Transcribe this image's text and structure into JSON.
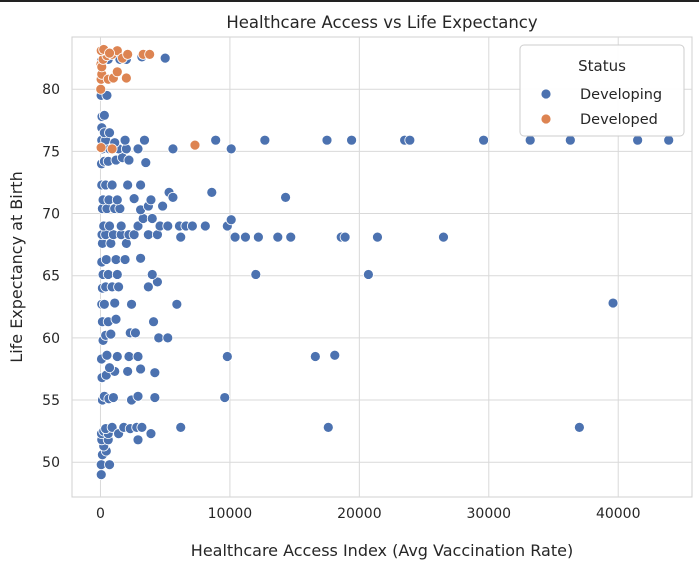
{
  "chart_data": {
    "type": "scatter",
    "title": "Healthcare Access vs Life Expectancy",
    "xlabel": "Healthcare Access Index (Avg Vaccination Rate)",
    "ylabel": "Life Expectancy at Birth",
    "xlim": [
      -2200,
      45700
    ],
    "ylim": [
      47.2,
      84.2
    ],
    "xticks": [
      0,
      10000,
      20000,
      30000,
      40000
    ],
    "yticks": [
      50,
      55,
      60,
      65,
      70,
      75,
      80
    ],
    "grid": true,
    "legend": {
      "title": "Status",
      "placement": "top-right",
      "entries": [
        {
          "label": "Developing",
          "color": "#4c72b0"
        },
        {
          "label": "Developed",
          "color": "#dd8452"
        }
      ]
    },
    "series": [
      {
        "name": "Developing",
        "color": "#4c72b0",
        "points": [
          [
            60,
            49.0
          ],
          [
            60,
            49.8
          ],
          [
            700,
            49.8
          ],
          [
            150,
            50.6
          ],
          [
            450,
            50.9
          ],
          [
            250,
            51.3
          ],
          [
            100,
            51.8
          ],
          [
            600,
            51.8
          ],
          [
            80,
            52.3
          ],
          [
            250,
            52.5
          ],
          [
            600,
            52.3
          ],
          [
            400,
            52.7
          ],
          [
            900,
            52.8
          ],
          [
            1400,
            52.3
          ],
          [
            1800,
            52.8
          ],
          [
            2300,
            52.7
          ],
          [
            2800,
            52.8
          ],
          [
            3200,
            52.8
          ],
          [
            3900,
            52.3
          ],
          [
            6200,
            52.8
          ],
          [
            17600,
            52.8
          ],
          [
            37000,
            52.8
          ],
          [
            2900,
            51.8
          ],
          [
            150,
            55.0
          ],
          [
            300,
            55.3
          ],
          [
            650,
            55.1
          ],
          [
            1000,
            55.2
          ],
          [
            2400,
            55.0
          ],
          [
            2900,
            55.3
          ],
          [
            4200,
            55.2
          ],
          [
            9600,
            55.2
          ],
          [
            120,
            56.8
          ],
          [
            450,
            57.0
          ],
          [
            1100,
            57.3
          ],
          [
            700,
            57.6
          ],
          [
            2100,
            57.3
          ],
          [
            3100,
            57.5
          ],
          [
            4200,
            57.2
          ],
          [
            80,
            58.3
          ],
          [
            500,
            58.6
          ],
          [
            1300,
            58.5
          ],
          [
            2200,
            58.5
          ],
          [
            2900,
            58.5
          ],
          [
            9800,
            58.5
          ],
          [
            16600,
            58.5
          ],
          [
            18100,
            58.6
          ],
          [
            200,
            59.8
          ],
          [
            400,
            60.2
          ],
          [
            800,
            60.3
          ],
          [
            2300,
            60.4
          ],
          [
            2700,
            60.4
          ],
          [
            4500,
            60.0
          ],
          [
            5200,
            60.0
          ],
          [
            150,
            61.3
          ],
          [
            600,
            61.3
          ],
          [
            1200,
            61.5
          ],
          [
            4100,
            61.3
          ],
          [
            100,
            62.7
          ],
          [
            300,
            62.7
          ],
          [
            1100,
            62.8
          ],
          [
            2400,
            62.7
          ],
          [
            5900,
            62.7
          ],
          [
            39600,
            62.8
          ],
          [
            150,
            64.0
          ],
          [
            400,
            64.1
          ],
          [
            900,
            64.1
          ],
          [
            1400,
            64.1
          ],
          [
            3700,
            64.1
          ],
          [
            4400,
            64.5
          ],
          [
            200,
            65.1
          ],
          [
            600,
            65.1
          ],
          [
            1300,
            65.1
          ],
          [
            4000,
            65.1
          ],
          [
            12000,
            65.1
          ],
          [
            20700,
            65.1
          ],
          [
            100,
            66.1
          ],
          [
            450,
            66.3
          ],
          [
            1200,
            66.3
          ],
          [
            1900,
            66.3
          ],
          [
            3100,
            66.4
          ],
          [
            150,
            67.6
          ],
          [
            800,
            67.6
          ],
          [
            2000,
            67.6
          ],
          [
            120,
            68.3
          ],
          [
            400,
            68.3
          ],
          [
            1000,
            68.3
          ],
          [
            1600,
            68.3
          ],
          [
            2200,
            68.3
          ],
          [
            2600,
            68.3
          ],
          [
            3700,
            68.3
          ],
          [
            4400,
            68.3
          ],
          [
            6200,
            68.1
          ],
          [
            10400,
            68.1
          ],
          [
            11200,
            68.1
          ],
          [
            12200,
            68.1
          ],
          [
            13700,
            68.1
          ],
          [
            14700,
            68.1
          ],
          [
            18600,
            68.1
          ],
          [
            18900,
            68.1
          ],
          [
            21400,
            68.1
          ],
          [
            26500,
            68.1
          ],
          [
            250,
            69.0
          ],
          [
            700,
            69.0
          ],
          [
            1600,
            69.0
          ],
          [
            2900,
            69.0
          ],
          [
            3300,
            69.6
          ],
          [
            4000,
            69.6
          ],
          [
            4600,
            69.0
          ],
          [
            5200,
            69.0
          ],
          [
            6100,
            69.0
          ],
          [
            6600,
            69.0
          ],
          [
            7100,
            69.0
          ],
          [
            8100,
            69.0
          ],
          [
            9800,
            69.0
          ],
          [
            10100,
            69.5
          ],
          [
            150,
            70.4
          ],
          [
            500,
            70.4
          ],
          [
            1100,
            70.4
          ],
          [
            1500,
            70.4
          ],
          [
            3100,
            70.3
          ],
          [
            3700,
            70.6
          ],
          [
            4800,
            70.6
          ],
          [
            200,
            71.1
          ],
          [
            650,
            71.1
          ],
          [
            1300,
            71.1
          ],
          [
            2600,
            71.2
          ],
          [
            3900,
            71.1
          ],
          [
            5300,
            71.7
          ],
          [
            5600,
            71.3
          ],
          [
            8600,
            71.7
          ],
          [
            14300,
            71.3
          ],
          [
            100,
            72.3
          ],
          [
            400,
            72.3
          ],
          [
            900,
            72.3
          ],
          [
            2100,
            72.3
          ],
          [
            3100,
            72.3
          ],
          [
            80,
            74.0
          ],
          [
            300,
            74.2
          ],
          [
            600,
            74.2
          ],
          [
            1200,
            74.3
          ],
          [
            1700,
            74.5
          ],
          [
            2200,
            74.3
          ],
          [
            3500,
            74.1
          ],
          [
            150,
            75.2
          ],
          [
            700,
            75.2
          ],
          [
            1400,
            75.2
          ],
          [
            2000,
            75.2
          ],
          [
            2900,
            75.2
          ],
          [
            5600,
            75.2
          ],
          [
            10100,
            75.2
          ],
          [
            100,
            75.9
          ],
          [
            400,
            75.9
          ],
          [
            1100,
            75.7
          ],
          [
            1900,
            75.9
          ],
          [
            3400,
            75.9
          ],
          [
            8900,
            75.9
          ],
          [
            12700,
            75.9
          ],
          [
            17500,
            75.9
          ],
          [
            19400,
            75.9
          ],
          [
            23500,
            75.9
          ],
          [
            23900,
            75.9
          ],
          [
            29600,
            75.9
          ],
          [
            33200,
            75.9
          ],
          [
            36300,
            75.9
          ],
          [
            41500,
            75.9
          ],
          [
            43900,
            75.9
          ],
          [
            100,
            76.9
          ],
          [
            300,
            76.5
          ],
          [
            700,
            76.5
          ],
          [
            120,
            77.8
          ],
          [
            300,
            77.9
          ],
          [
            50,
            79.5
          ],
          [
            500,
            79.5
          ],
          [
            80,
            82.3
          ],
          [
            300,
            82.3
          ],
          [
            600,
            82.4
          ],
          [
            1500,
            82.4
          ],
          [
            2000,
            82.4
          ],
          [
            3200,
            82.6
          ],
          [
            5000,
            82.5
          ]
        ]
      },
      {
        "name": "Developed",
        "color": "#dd8452",
        "points": [
          [
            20,
            80.0
          ],
          [
            50,
            80.8
          ],
          [
            100,
            81.2
          ],
          [
            600,
            80.8
          ],
          [
            1000,
            80.9
          ],
          [
            1300,
            81.4
          ],
          [
            2000,
            80.9
          ],
          [
            30,
            82.0
          ],
          [
            100,
            81.8
          ],
          [
            200,
            82.4
          ],
          [
            500,
            82.7
          ],
          [
            900,
            82.8
          ],
          [
            1300,
            83.1
          ],
          [
            1700,
            82.5
          ],
          [
            2100,
            82.8
          ],
          [
            3300,
            82.8
          ],
          [
            3800,
            82.8
          ],
          [
            60,
            83.1
          ],
          [
            250,
            83.2
          ],
          [
            700,
            82.9
          ],
          [
            50,
            75.3
          ],
          [
            900,
            75.2
          ],
          [
            7300,
            75.5
          ]
        ]
      }
    ]
  }
}
